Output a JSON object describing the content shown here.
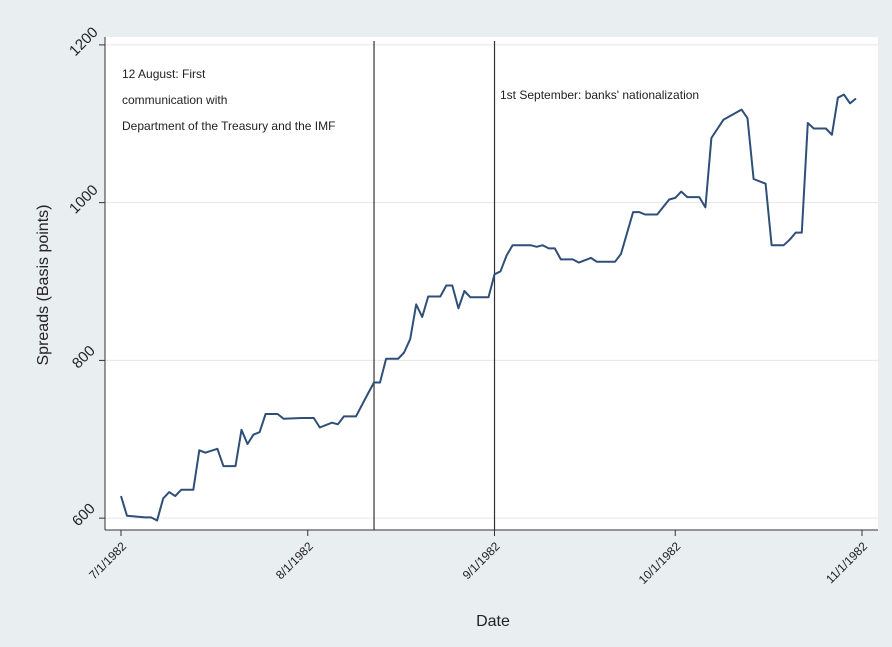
{
  "chart_data": {
    "type": "line",
    "xlabel": "Date",
    "ylabel": "Spreads (Basis points)",
    "xticks": [
      {
        "label": "7/1/1982",
        "value": "1982-07-01"
      },
      {
        "label": "8/1/1982",
        "value": "1982-08-01"
      },
      {
        "label": "9/1/1982",
        "value": "1982-09-01"
      },
      {
        "label": "10/1/1982",
        "value": "1982-10-01"
      },
      {
        "label": "11/1/1982",
        "value": "1982-11-01"
      }
    ],
    "yticks": [
      {
        "label": "600",
        "value": 600
      },
      {
        "label": "800",
        "value": 800
      },
      {
        "label": "1000",
        "value": 1000
      },
      {
        "label": "1200",
        "value": 1200
      }
    ],
    "xlim": [
      "1982-07-01",
      "1982-11-01"
    ],
    "ylim": [
      585,
      1210
    ],
    "grid": "horizontal",
    "colors": {
      "line": "#2f4f78",
      "vline": "#333333",
      "plot_bg": "#ffffff",
      "page_bg": "#e9eef1"
    },
    "vlines": [
      {
        "date": "1982-08-12",
        "label": "12 August: First communication with Department of the Treasury and the IMF"
      },
      {
        "date": "1982-09-01",
        "label": "1st September: banks' nationalization"
      }
    ],
    "annotations": [
      {
        "lines": [
          "12 August: First",
          "communication with",
          "Department of the Treasury and the IMF"
        ]
      },
      {
        "lines": [
          "1st September: banks' nationalization"
        ]
      }
    ],
    "series": [
      {
        "points": [
          [
            "1982-07-01",
            628
          ],
          [
            "1982-07-02",
            603
          ],
          [
            "1982-07-05",
            601
          ],
          [
            "1982-07-06",
            601
          ],
          [
            "1982-07-07",
            597
          ],
          [
            "1982-07-08",
            625
          ],
          [
            "1982-07-09",
            633
          ],
          [
            "1982-07-10",
            628
          ],
          [
            "1982-07-11",
            636
          ],
          [
            "1982-07-13",
            636
          ],
          [
            "1982-07-14",
            686
          ],
          [
            "1982-07-15",
            683
          ],
          [
            "1982-07-17",
            688
          ],
          [
            "1982-07-18",
            666
          ],
          [
            "1982-07-20",
            666
          ],
          [
            "1982-07-21",
            712
          ],
          [
            "1982-07-22",
            694
          ],
          [
            "1982-07-23",
            706
          ],
          [
            "1982-07-24",
            709
          ],
          [
            "1982-07-25",
            732
          ],
          [
            "1982-07-27",
            732
          ],
          [
            "1982-07-28",
            726
          ],
          [
            "1982-07-31",
            727
          ],
          [
            "1982-08-02",
            727
          ],
          [
            "1982-08-03",
            715
          ],
          [
            "1982-08-05",
            721
          ],
          [
            "1982-08-06",
            719
          ],
          [
            "1982-08-07",
            729
          ],
          [
            "1982-08-09",
            729
          ],
          [
            "1982-08-11",
            758
          ],
          [
            "1982-08-12",
            772
          ],
          [
            "1982-08-13",
            772
          ],
          [
            "1982-08-14",
            802
          ],
          [
            "1982-08-16",
            802
          ],
          [
            "1982-08-17",
            810
          ],
          [
            "1982-08-18",
            827
          ],
          [
            "1982-08-19",
            871
          ],
          [
            "1982-08-20",
            855
          ],
          [
            "1982-08-21",
            881
          ],
          [
            "1982-08-23",
            881
          ],
          [
            "1982-08-24",
            895
          ],
          [
            "1982-08-25",
            895
          ],
          [
            "1982-08-26",
            866
          ],
          [
            "1982-08-27",
            888
          ],
          [
            "1982-08-28",
            880
          ],
          [
            "1982-08-31",
            880
          ],
          [
            "1982-09-01",
            909
          ],
          [
            "1982-09-02",
            913
          ],
          [
            "1982-09-03",
            933
          ],
          [
            "1982-09-04",
            946
          ],
          [
            "1982-09-07",
            946
          ],
          [
            "1982-09-08",
            944
          ],
          [
            "1982-09-09",
            946
          ],
          [
            "1982-09-10",
            942
          ],
          [
            "1982-09-11",
            942
          ],
          [
            "1982-09-12",
            928
          ],
          [
            "1982-09-14",
            928
          ],
          [
            "1982-09-15",
            924
          ],
          [
            "1982-09-17",
            930
          ],
          [
            "1982-09-18",
            925
          ],
          [
            "1982-09-21",
            925
          ],
          [
            "1982-09-22",
            935
          ],
          [
            "1982-09-24",
            988
          ],
          [
            "1982-09-25",
            988
          ],
          [
            "1982-09-26",
            985
          ],
          [
            "1982-09-28",
            985
          ],
          [
            "1982-09-30",
            1004
          ],
          [
            "1982-10-01",
            1006
          ],
          [
            "1982-10-02",
            1014
          ],
          [
            "1982-10-03",
            1007
          ],
          [
            "1982-10-05",
            1007
          ],
          [
            "1982-10-06",
            994
          ],
          [
            "1982-10-07",
            1082
          ],
          [
            "1982-10-09",
            1105
          ],
          [
            "1982-10-12",
            1118
          ],
          [
            "1982-10-13",
            1107
          ],
          [
            "1982-10-14",
            1030
          ],
          [
            "1982-10-16",
            1024
          ],
          [
            "1982-10-17",
            946
          ],
          [
            "1982-10-19",
            946
          ],
          [
            "1982-10-20",
            953
          ],
          [
            "1982-10-21",
            962
          ],
          [
            "1982-10-22",
            962
          ],
          [
            "1982-10-23",
            1101
          ],
          [
            "1982-10-24",
            1094
          ],
          [
            "1982-10-26",
            1094
          ],
          [
            "1982-10-27",
            1086
          ],
          [
            "1982-10-28",
            1133
          ],
          [
            "1982-10-29",
            1137
          ],
          [
            "1982-10-30",
            1126
          ],
          [
            "1982-10-31",
            1132
          ]
        ]
      }
    ]
  }
}
